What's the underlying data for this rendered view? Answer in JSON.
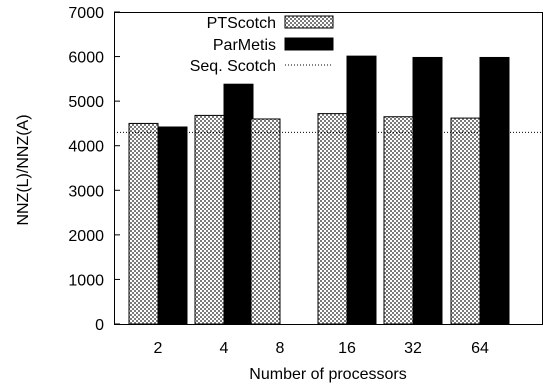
{
  "chart_data": {
    "type": "bar",
    "xlabel": "Number of processors",
    "ylabel": "NNZ(L)/NNZ(A)",
    "categories": [
      "2",
      "4",
      "8",
      "16",
      "32",
      "64"
    ],
    "ylim": [
      0,
      7000
    ],
    "yticks": [
      0,
      1000,
      2000,
      3000,
      4000,
      5000,
      6000,
      7000
    ],
    "series": [
      {
        "name": "PTScotch",
        "values": [
          4500,
          4680,
          4600,
          4720,
          4650,
          4620
        ],
        "fill": "checkered-gray"
      },
      {
        "name": "ParMetis",
        "values": [
          4420,
          5380,
          null,
          6010,
          5980,
          5980
        ],
        "fill": "#000000"
      }
    ],
    "reference_line": {
      "name": "Seq. Scotch",
      "value": 4300,
      "style": "dotted"
    },
    "legend": "top-right",
    "grid": false
  }
}
